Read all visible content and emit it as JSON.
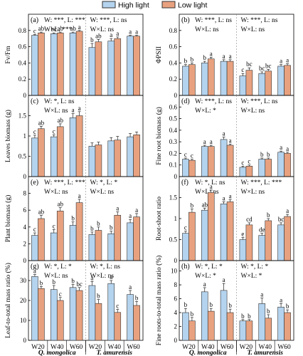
{
  "legend": {
    "high": "High light",
    "low": "Low light"
  },
  "colors": {
    "high": "#b4d3ee",
    "low": "#e8a17f",
    "stroke": "#333333"
  },
  "groups": [
    "W20",
    "W40",
    "W60",
    "W20",
    "W40",
    "W60"
  ],
  "species": [
    "Q. mongolica",
    "T. amurensis"
  ],
  "chart_data": [
    {
      "type": "bar",
      "panel": "(a)",
      "ylabel": "Fv/Fm",
      "ylim": [
        0,
        1.0
      ],
      "ticks": [
        0,
        0.2,
        0.4,
        0.6,
        0.8
      ],
      "stats_left": [
        "W: ***, L: ***",
        "W×L: ***"
      ],
      "stats_right": [
        "W: ***, L: ns",
        "W×L: ns"
      ],
      "series": [
        {
          "name": "High light",
          "values": [
            0.74,
            0.76,
            0.77,
            0.59,
            0.67,
            0.73
          ],
          "errors": [
            0.01,
            0.01,
            0.01,
            0.05,
            0.03,
            0.01
          ],
          "letters": [
            "c",
            "bc",
            "ab",
            "b",
            "a",
            "a"
          ]
        },
        {
          "name": "Low light",
          "values": [
            0.77,
            0.77,
            0.79,
            0.66,
            0.7,
            0.73
          ],
          "errors": [
            0.01,
            0.01,
            0.01,
            0.03,
            0.02,
            0.01
          ],
          "letters": [
            "ab",
            "ab",
            "a",
            "ab",
            "a",
            "a"
          ]
        }
      ]
    },
    {
      "type": "bar",
      "panel": "(b)",
      "ylabel": "ΦPSII",
      "ylim": [
        0,
        1.0
      ],
      "ticks": [
        0,
        0.2,
        0.4,
        0.6,
        0.8
      ],
      "stats_left": [
        "W: ***, L: ns",
        "W×L: ns"
      ],
      "stats_right": [
        "W: ***, L: ns",
        "W×L: ns"
      ],
      "series": [
        {
          "name": "High light",
          "values": [
            0.36,
            0.4,
            0.42,
            0.24,
            0.27,
            0.36
          ],
          "errors": [
            0.02,
            0.02,
            0.02,
            0.03,
            0.02,
            0.02
          ],
          "letters": [
            "b",
            "b",
            "a",
            "c",
            "bc",
            "a"
          ]
        },
        {
          "name": "Low light",
          "values": [
            0.38,
            0.45,
            0.42,
            0.31,
            0.3,
            0.37
          ],
          "errors": [
            0.02,
            0.02,
            0.02,
            0.03,
            0.02,
            0.02
          ],
          "letters": [
            "b",
            "a",
            "a",
            "bc",
            "bc",
            "a"
          ]
        }
      ]
    },
    {
      "type": "bar",
      "panel": "(c)",
      "ylabel": "Leaves biomass (g)",
      "ylim": [
        0,
        2.0
      ],
      "ticks": [
        0,
        0.5,
        1.0,
        1.5
      ],
      "stats_left": [
        "W: *, L: ns",
        "W×L: ns"
      ],
      "stats_right": [],
      "series": [
        {
          "name": "High light",
          "values": [
            0.95,
            0.98,
            1.45,
            0.75,
            0.88,
            0.98
          ],
          "errors": [
            0.07,
            0.05,
            0.1,
            0.08,
            0.08,
            0.08
          ],
          "letters": [
            "c",
            "c",
            "a",
            "",
            "",
            ""
          ]
        },
        {
          "name": "Low light",
          "values": [
            1.18,
            1.23,
            1.5,
            0.78,
            0.9,
            1.03
          ],
          "errors": [
            0.06,
            0.07,
            0.1,
            0.07,
            0.09,
            0.07
          ],
          "letters": [
            "ab",
            "ab",
            "a",
            "",
            "",
            ""
          ]
        }
      ]
    },
    {
      "type": "bar",
      "panel": "(d)",
      "ylabel": "Fine root biomass (g)",
      "ylim": [
        0,
        0.7
      ],
      "ticks": [
        0,
        0.1,
        0.2,
        0.3,
        0.4,
        0.5,
        0.6
      ],
      "stats_left": [
        "W: ***, L: ns",
        "W×L: *"
      ],
      "stats_right": [
        "W: ***, L: ns",
        "W×L: ns"
      ],
      "series": [
        {
          "name": "High light",
          "values": [
            0.15,
            0.26,
            0.32,
            0.08,
            0.15,
            0.21
          ],
          "errors": [
            0.01,
            0.01,
            0.02,
            0.01,
            0.01,
            0.01
          ],
          "letters": [
            "c",
            "a",
            "a",
            "c",
            "b",
            "a"
          ]
        },
        {
          "name": "Low light",
          "values": [
            0.14,
            0.26,
            0.27,
            0.09,
            0.15,
            0.2
          ],
          "errors": [
            0.01,
            0.01,
            0.01,
            0.01,
            0.01,
            0.01
          ],
          "letters": [
            "c",
            "a",
            "a",
            "c",
            "b",
            "a"
          ]
        }
      ]
    },
    {
      "type": "bar",
      "panel": "(e)",
      "ylabel": "Plant biomass (g)",
      "ylim": [
        0,
        10
      ],
      "ticks": [
        0,
        2,
        4,
        6,
        8
      ],
      "stats_left": [
        "W: ***, L: ***",
        "W×L: ns"
      ],
      "stats_right": [
        "W: *, L: *",
        "W×L: ns"
      ],
      "series": [
        {
          "name": "High light",
          "values": [
            3.0,
            3.3,
            4.2,
            3.1,
            3.2,
            4.5
          ],
          "errors": [
            0.3,
            0.4,
            0.4,
            0.3,
            0.3,
            0.4
          ],
          "letters": [
            "c",
            "c",
            "b",
            "b",
            "b",
            "a"
          ]
        },
        {
          "name": "Low light",
          "values": [
            5.0,
            5.9,
            6.9,
            3.6,
            5.4,
            5.2
          ],
          "errors": [
            0.4,
            0.4,
            0.4,
            0.4,
            0.4,
            0.4
          ],
          "letters": [
            "ab",
            "ab",
            "a",
            "b",
            "a",
            "a"
          ]
        }
      ]
    },
    {
      "type": "bar",
      "panel": "(f)",
      "ylabel": "Root-shoot ratio",
      "ylim": [
        0,
        2.0
      ],
      "ticks": [
        0,
        0.5,
        1.0,
        1.5
      ],
      "stats_left": [
        "W: *, L: ns",
        "W×L: ns"
      ],
      "stats_right": [
        "W: ***, L: ***",
        "W×L: ns"
      ],
      "series": [
        {
          "name": "High light",
          "values": [
            0.65,
            1.2,
            1.35,
            0.5,
            0.6,
            0.85
          ],
          "errors": [
            0.05,
            0.05,
            0.05,
            0.05,
            0.05,
            0.05
          ],
          "letters": [
            "c",
            "ab",
            "a",
            "e",
            "de",
            "bc"
          ]
        },
        {
          "name": "Low light",
          "values": [
            1.15,
            1.62,
            1.4,
            0.85,
            0.95,
            1.05
          ],
          "errors": [
            0.08,
            0.06,
            0.05,
            0.05,
            0.05,
            0.05
          ],
          "letters": [
            "b",
            "a",
            "a",
            "cd",
            "b",
            "a"
          ]
        }
      ]
    },
    {
      "type": "bar",
      "panel": "(g)",
      "ylabel": "Leaf-to-total mass ratio (%)",
      "ylim": [
        0,
        40
      ],
      "ticks": [
        0,
        10,
        20,
        30
      ],
      "stats_left": [
        "W: *, L: *",
        "W×L: ns"
      ],
      "stats_right": [
        "W: *, L: ns",
        "W×L: ns"
      ],
      "series": [
        {
          "name": "High light",
          "values": [
            32,
            25.5,
            26.5,
            27.5,
            28.5,
            23
          ],
          "errors": [
            1.0,
            2.0,
            1.5,
            2.0,
            1.5,
            2.0
          ],
          "letters": [
            "a",
            "b",
            "b",
            "a",
            "a",
            "a"
          ]
        },
        {
          "name": "Low light",
          "values": [
            26,
            20,
            25,
            18.5,
            14,
            17.5
          ],
          "errors": [
            1.0,
            1.5,
            1.5,
            2.0,
            1.5,
            2.0
          ],
          "letters": [
            "b",
            "c",
            "bc",
            "b",
            "c",
            "b"
          ]
        }
      ]
    },
    {
      "type": "bar",
      "panel": "(h)",
      "ylabel": "Fine roots-to-total mass ratio (%)",
      "ylim": [
        0,
        11.5
      ],
      "ticks": [
        0,
        2,
        4,
        6,
        8,
        10
      ],
      "stats_left": [
        "W: *, L: *",
        "W×L: *"
      ],
      "stats_right": [
        "W: *, L: *",
        "W×L: *"
      ],
      "series": [
        {
          "name": "High light",
          "values": [
            4.0,
            7.0,
            7.2,
            2.8,
            5.3,
            4.8
          ],
          "errors": [
            0.6,
            0.6,
            1.0,
            0.2,
            0.8,
            0.5
          ],
          "letters": [
            "b",
            "a",
            "a",
            "b",
            "a",
            "a"
          ]
        },
        {
          "name": "Low light",
          "values": [
            2.8,
            4.2,
            4.0,
            2.8,
            3.2,
            4.0
          ],
          "errors": [
            0.5,
            0.4,
            0.5,
            0.2,
            0.5,
            0.4
          ],
          "letters": [
            "b",
            "b",
            "b",
            "b",
            "b",
            "b"
          ]
        }
      ]
    }
  ]
}
